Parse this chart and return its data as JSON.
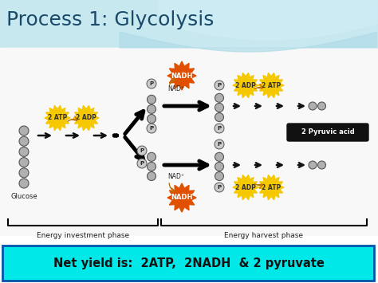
{
  "title": "Process 1: Glycolysis",
  "title_fontsize": 18,
  "title_color": "#1a4a6a",
  "net_yield_text": "Net yield is:  2ATP,  2NADH  & 2 pyruvate",
  "net_yield_bg": "#00e8e8",
  "net_yield_border": "#0055aa",
  "energy_investment_label": "Energy investment phase",
  "energy_harvest_label": "Energy harvest phase",
  "glucose_label": "Glucose",
  "pyruvic_label": "2 Pyruvic acid",
  "nadh_color": "#e05000",
  "atp_color": "#f5c800",
  "molecule_color": "#b0b0b0",
  "molecule_border": "#555555",
  "bg_main": "#ffffff",
  "bg_top_left": "#b8dce8",
  "bg_top_right": "#a0d0e0",
  "arrow_color": "#111111"
}
